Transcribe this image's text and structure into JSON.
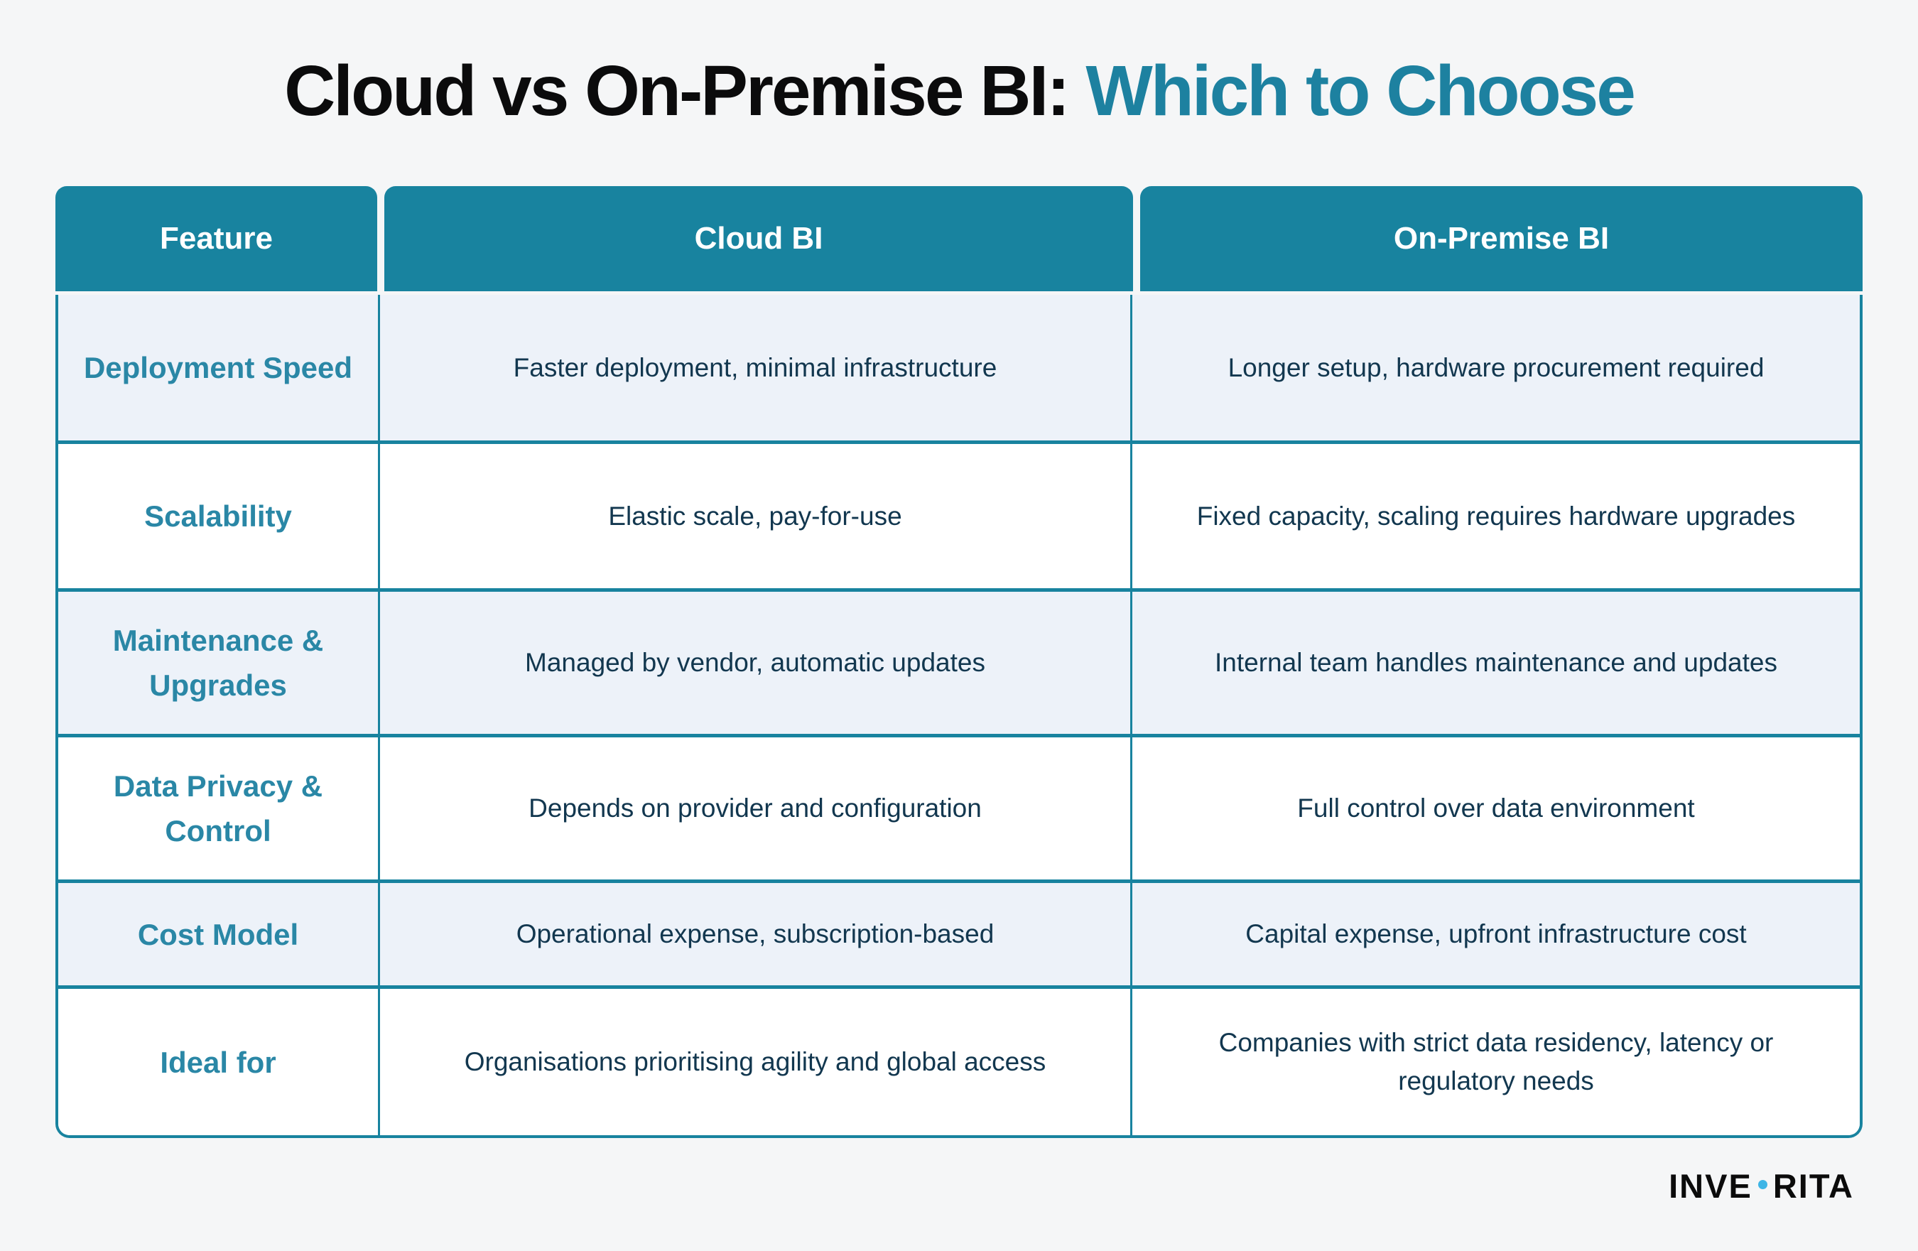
{
  "title": {
    "main": "Cloud vs On-Premise BI: ",
    "accent": "Which to Choose"
  },
  "table": {
    "headers": [
      "Feature",
      "Cloud BI",
      "On-Premise BI"
    ],
    "rows": [
      {
        "feature": "Deployment Speed",
        "cloud": "Faster deployment, minimal infrastructure",
        "onprem": "Longer setup, hardware procurement required"
      },
      {
        "feature": "Scalability",
        "cloud": "Elastic scale, pay-for-use",
        "onprem": "Fixed capacity, scaling requires hardware upgrades"
      },
      {
        "feature": "Maintenance & Upgrades",
        "cloud": "Managed by vendor, automatic updates",
        "onprem": "Internal team handles maintenance and updates"
      },
      {
        "feature": "Data Privacy & Control",
        "cloud": "Depends on provider and configuration",
        "onprem": "Full control over data environment"
      },
      {
        "feature": "Cost Model",
        "cloud": "Operational expense, subscription-based",
        "onprem": "Capital expense, upfront infrastructure cost"
      },
      {
        "feature": "Ideal for",
        "cloud": "Organisations prioritising agility and global access",
        "onprem": "Companies with strict data residency, latency or regulatory needs"
      }
    ]
  },
  "logo": {
    "left": "INVE",
    "right": "RITA"
  },
  "colors": {
    "teal": "#18839f",
    "accent-title": "#1d81a0",
    "feature-text": "#2a87a6",
    "body-text": "#12374f",
    "row-light": "#edf2f9",
    "row-white": "#ffffff",
    "page-bg": "#f5f6f7",
    "logo-dot": "#3db5e6",
    "logo-text": "#0b0b0b",
    "header-text": "#ffffff"
  },
  "chart_data": {
    "type": "table",
    "title": "Cloud vs On-Premise BI: Which to Choose",
    "columns": [
      "Feature",
      "Cloud BI",
      "On-Premise BI"
    ],
    "rows": [
      [
        "Deployment Speed",
        "Faster deployment, minimal infrastructure",
        "Longer setup, hardware procurement required"
      ],
      [
        "Scalability",
        "Elastic scale, pay-for-use",
        "Fixed capacity, scaling requires hardware upgrades"
      ],
      [
        "Maintenance & Upgrades",
        "Managed by vendor, automatic updates",
        "Internal team handles maintenance and updates"
      ],
      [
        "Data Privacy & Control",
        "Depends on provider and configuration",
        "Full control over data environment"
      ],
      [
        "Cost Model",
        "Operational expense, subscription-based",
        "Capital expense, upfront infrastructure cost"
      ],
      [
        "Ideal for",
        "Organisations prioritising agility and global access",
        "Companies with strict data residency, latency or regulatory needs"
      ]
    ]
  }
}
